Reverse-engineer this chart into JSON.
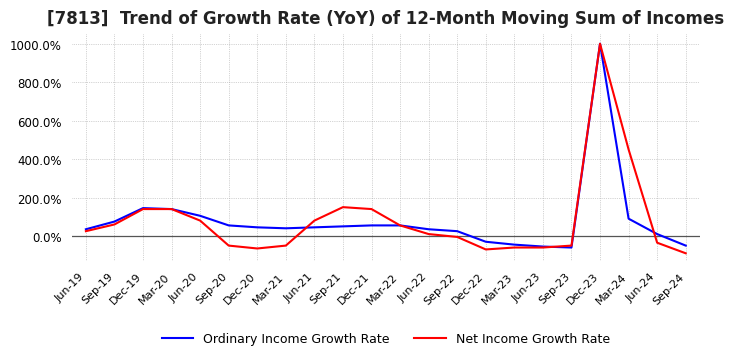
{
  "title": "[7813]  Trend of Growth Rate (YoY) of 12-Month Moving Sum of Incomes",
  "title_fontsize": 12,
  "ylim": [
    -130,
    1050
  ],
  "yticks": [
    0,
    200,
    400,
    600,
    800,
    1000
  ],
  "background_color": "#ffffff",
  "grid_color": "#aaaaaa",
  "legend_labels": [
    "Ordinary Income Growth Rate",
    "Net Income Growth Rate"
  ],
  "line_colors": [
    "#0000ff",
    "#ff0000"
  ],
  "x_labels": [
    "Jun-19",
    "Sep-19",
    "Dec-19",
    "Mar-20",
    "Jun-20",
    "Sep-20",
    "Dec-20",
    "Mar-21",
    "Jun-21",
    "Sep-21",
    "Dec-21",
    "Mar-22",
    "Jun-22",
    "Sep-22",
    "Dec-22",
    "Mar-23",
    "Jun-23",
    "Sep-23",
    "Dec-23",
    "Mar-24",
    "Jun-24",
    "Sep-24"
  ],
  "ordinary_income_growth": [
    35,
    75,
    145,
    140,
    105,
    55,
    45,
    40,
    45,
    50,
    55,
    55,
    35,
    25,
    -30,
    -45,
    -55,
    -60,
    1000,
    90,
    10,
    -50
  ],
  "net_income_growth": [
    25,
    60,
    140,
    140,
    80,
    -50,
    -65,
    -50,
    80,
    150,
    140,
    55,
    10,
    -5,
    -70,
    -60,
    -60,
    -50,
    1000,
    450,
    -35,
    -90
  ]
}
